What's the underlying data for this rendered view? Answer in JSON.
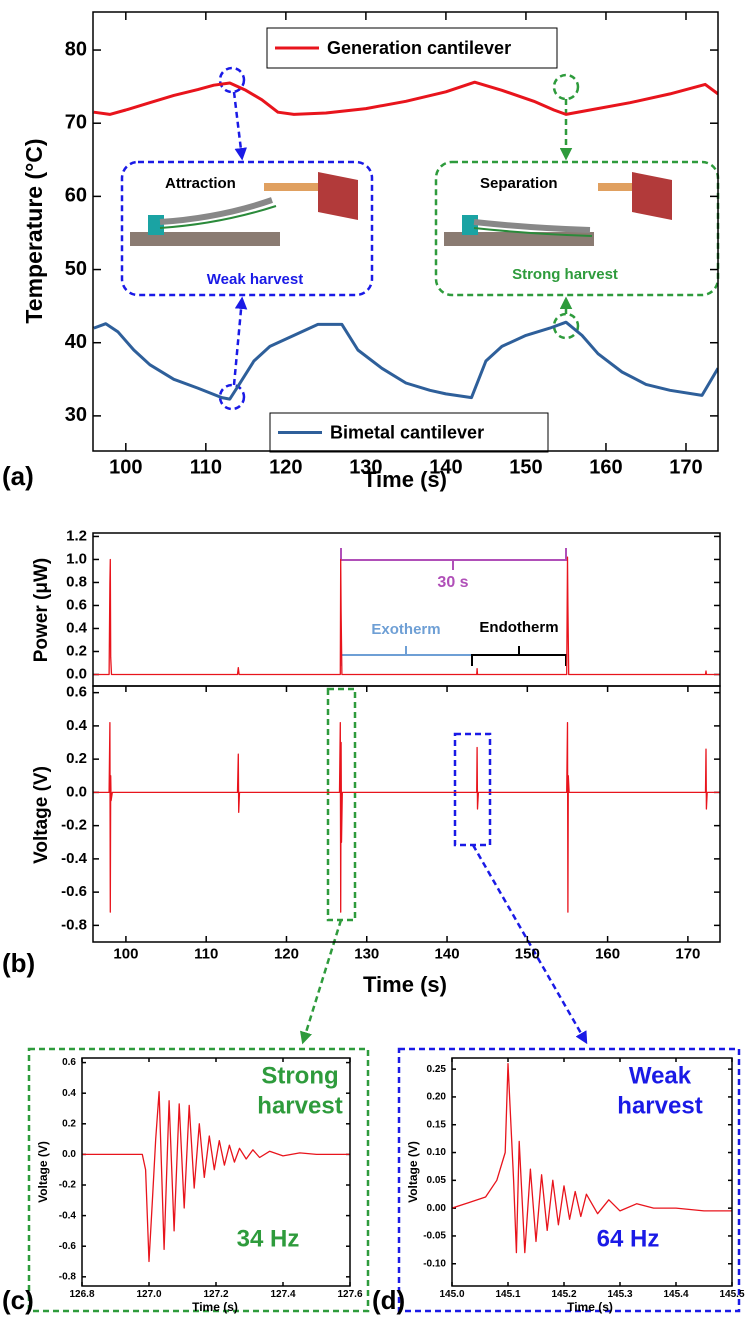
{
  "chart_data": [
    {
      "type": "line",
      "panel_label": "(a)",
      "ylabel": "Temperature (°C)",
      "xlabel": "Time (s)",
      "xlim": [
        95.9,
        174
      ],
      "xticks": [
        100,
        110,
        120,
        130,
        140,
        150,
        160,
        170
      ],
      "ylim": [
        25.2,
        85.2
      ],
      "yticks": [
        30,
        40,
        50,
        60,
        70,
        80
      ],
      "annotations": [
        "Attraction",
        "Weak harvest",
        "Separation",
        "Strong harvest"
      ],
      "series": [
        {
          "name": "Generation cantilever",
          "color": "#e8141c",
          "x": [
            96,
            98,
            100,
            103,
            106,
            109,
            111,
            113,
            115,
            117,
            119,
            121,
            125,
            130,
            135,
            140,
            143.6,
            147,
            151,
            153.5,
            155,
            158,
            163,
            168,
            172.4,
            174
          ],
          "values": [
            71.5,
            71.2,
            71.8,
            72.8,
            73.8,
            74.6,
            75.2,
            75.5,
            74.5,
            73.2,
            71.5,
            71.2,
            71.4,
            72,
            73,
            74.3,
            75.6,
            74.5,
            73,
            71.8,
            71.2,
            71.8,
            72.8,
            74,
            75.3,
            74
          ]
        },
        {
          "name": "Bimetal cantilever",
          "color": "#2e5f9a",
          "x": [
            96,
            97.5,
            99,
            101,
            103,
            106,
            109,
            112,
            113,
            114,
            116,
            118,
            121,
            124,
            127,
            129,
            132,
            135,
            138,
            140,
            143.2,
            145,
            147,
            150,
            153,
            155,
            157,
            159,
            162,
            165,
            168,
            172,
            174
          ],
          "values": [
            42,
            42.6,
            41.5,
            39,
            37,
            35,
            33.8,
            32.5,
            32.3,
            34,
            37.5,
            39.5,
            41,
            42.5,
            42.5,
            39,
            36.5,
            34.5,
            33.5,
            33,
            32.5,
            37.5,
            39.5,
            41,
            42,
            42.8,
            41,
            38.5,
            36,
            34.3,
            33.5,
            32.8,
            36.5
          ]
        }
      ]
    },
    {
      "type": "line",
      "ylabel": "Power (μW)",
      "xlim": [
        95.9,
        174
      ],
      "ylim": [
        -0.1,
        1.23
      ],
      "yticks": [
        {
          "value": 0,
          "label": "0.0"
        },
        0.2,
        0.4,
        0.6,
        0.8,
        {
          "value": 1,
          "label": "1.0"
        },
        1.2
      ],
      "annotations": [
        "30 s",
        "Exotherm",
        "Endotherm"
      ],
      "series": [
        {
          "color": "#e8141c",
          "x": [
            95.9,
            97.9,
            98,
            98.05,
            98.1,
            98.2,
            113.9,
            114,
            114.1,
            126.7,
            126.75,
            126.8,
            126.9,
            143.7,
            143.75,
            143.8,
            154.9,
            155,
            155.05,
            155.15,
            172.2,
            172.25,
            172.3,
            174
          ],
          "values": [
            0,
            0,
            0.8,
            1.0,
            0.15,
            0,
            0,
            0.06,
            0,
            0,
            1.0,
            0.55,
            0,
            0,
            0.05,
            0,
            0,
            1.02,
            0.6,
            0,
            0,
            0.03,
            0,
            0
          ]
        }
      ]
    },
    {
      "type": "line",
      "panel_label": "(b)",
      "ylabel": "Voltage (V)",
      "xlabel": "Time (s)",
      "xlim": [
        95.9,
        174
      ],
      "xticks": [
        100,
        110,
        120,
        130,
        140,
        150,
        160,
        170
      ],
      "ylim": [
        -0.9,
        0.64
      ],
      "yticks": [
        -0.8,
        -0.6,
        -0.4,
        -0.2,
        {
          "value": 0,
          "label": "0.0"
        },
        0.2,
        0.4,
        0.6
      ],
      "series": [
        {
          "color": "#e8141c",
          "x": [
            95.9,
            97.9,
            98,
            98.05,
            98.1,
            98.15,
            98.3,
            113.9,
            114,
            114.05,
            114.15,
            126.6,
            126.7,
            126.75,
            126.8,
            126.85,
            126.95,
            143.7,
            143.75,
            143.8,
            143.9,
            154.9,
            155,
            155.05,
            155.1,
            155.2,
            172.2,
            172.25,
            172.3,
            172.4,
            174
          ],
          "values": [
            0,
            0,
            0.42,
            -0.72,
            0.1,
            -0.05,
            0,
            0,
            0.23,
            -0.12,
            0,
            0,
            0.42,
            -0.72,
            0.3,
            -0.3,
            0,
            0,
            0.27,
            -0.1,
            0,
            0,
            0.42,
            -0.72,
            0.1,
            0,
            0,
            0.26,
            -0.1,
            0,
            0
          ]
        }
      ]
    },
    {
      "type": "line",
      "panel_label": "(c)",
      "ylabel": "Voltage (V)",
      "xlabel": "Time (s)",
      "xlim": [
        126.8,
        127.6
      ],
      "xticks": [
        126.8,
        {
          "value": 127,
          "label": "127.0"
        },
        127.2,
        127.4,
        127.6
      ],
      "ylim": [
        -0.86,
        0.63
      ],
      "yticks": [
        -0.8,
        -0.6,
        -0.4,
        -0.2,
        {
          "value": 0,
          "label": "0.0"
        },
        0.2,
        0.4,
        0.6
      ],
      "annotations": [
        "Strong",
        "harvest",
        "34 Hz"
      ],
      "series": [
        {
          "color": "#e8141c",
          "x": [
            126.8,
            126.98,
            126.99,
            127.0,
            127.01,
            127.02,
            127.03,
            127.045,
            127.06,
            127.075,
            127.09,
            127.105,
            127.12,
            127.135,
            127.15,
            127.165,
            127.18,
            127.195,
            127.21,
            127.225,
            127.24,
            127.255,
            127.27,
            127.29,
            127.31,
            127.33,
            127.36,
            127.4,
            127.45,
            127.5,
            127.6
          ],
          "values": [
            0,
            0,
            -0.1,
            -0.7,
            -0.3,
            0.1,
            0.41,
            -0.62,
            0.35,
            -0.5,
            0.33,
            -0.35,
            0.32,
            -0.22,
            0.2,
            -0.15,
            0.12,
            -0.1,
            0.09,
            -0.07,
            0.06,
            -0.05,
            0.04,
            -0.03,
            0.03,
            -0.02,
            0.02,
            -0.01,
            0.01,
            0,
            0
          ]
        }
      ]
    },
    {
      "type": "line",
      "panel_label": "(d)",
      "ylabel": "Voltage (V)",
      "xlabel": "Time (s)",
      "xlim": [
        145,
        145.5
      ],
      "xticks": [
        {
          "value": 145,
          "label": "145.0"
        },
        145.1,
        145.2,
        145.3,
        145.4,
        145.5
      ],
      "ylim": [
        -0.14,
        0.27
      ],
      "yticks": [
        {
          "value": -0.1,
          "label": "-0.10"
        },
        -0.05,
        {
          "value": 0,
          "label": "0.00"
        },
        0.05,
        {
          "value": 0.1,
          "label": "0.10"
        },
        0.15,
        {
          "value": 0.2,
          "label": "0.20"
        },
        0.25
      ],
      "annotations": [
        "Weak",
        "harvest",
        "64 Hz"
      ],
      "series": [
        {
          "color": "#e8141c",
          "x": [
            145.0,
            145.03,
            145.06,
            145.08,
            145.095,
            145.1,
            145.11,
            145.115,
            145.12,
            145.13,
            145.14,
            145.15,
            145.16,
            145.17,
            145.18,
            145.19,
            145.2,
            145.21,
            145.22,
            145.23,
            145.24,
            145.26,
            145.28,
            145.3,
            145.33,
            145.36,
            145.4,
            145.45,
            145.5
          ],
          "values": [
            0,
            0.01,
            0.02,
            0.05,
            0.1,
            0.26,
            0.05,
            -0.08,
            0.12,
            -0.08,
            0.07,
            -0.06,
            0.06,
            -0.04,
            0.05,
            -0.03,
            0.04,
            -0.02,
            0.03,
            -0.015,
            0.025,
            -0.01,
            0.015,
            -0.005,
            0.008,
            0,
            0,
            -0.005,
            -0.005
          ]
        }
      ]
    }
  ]
}
